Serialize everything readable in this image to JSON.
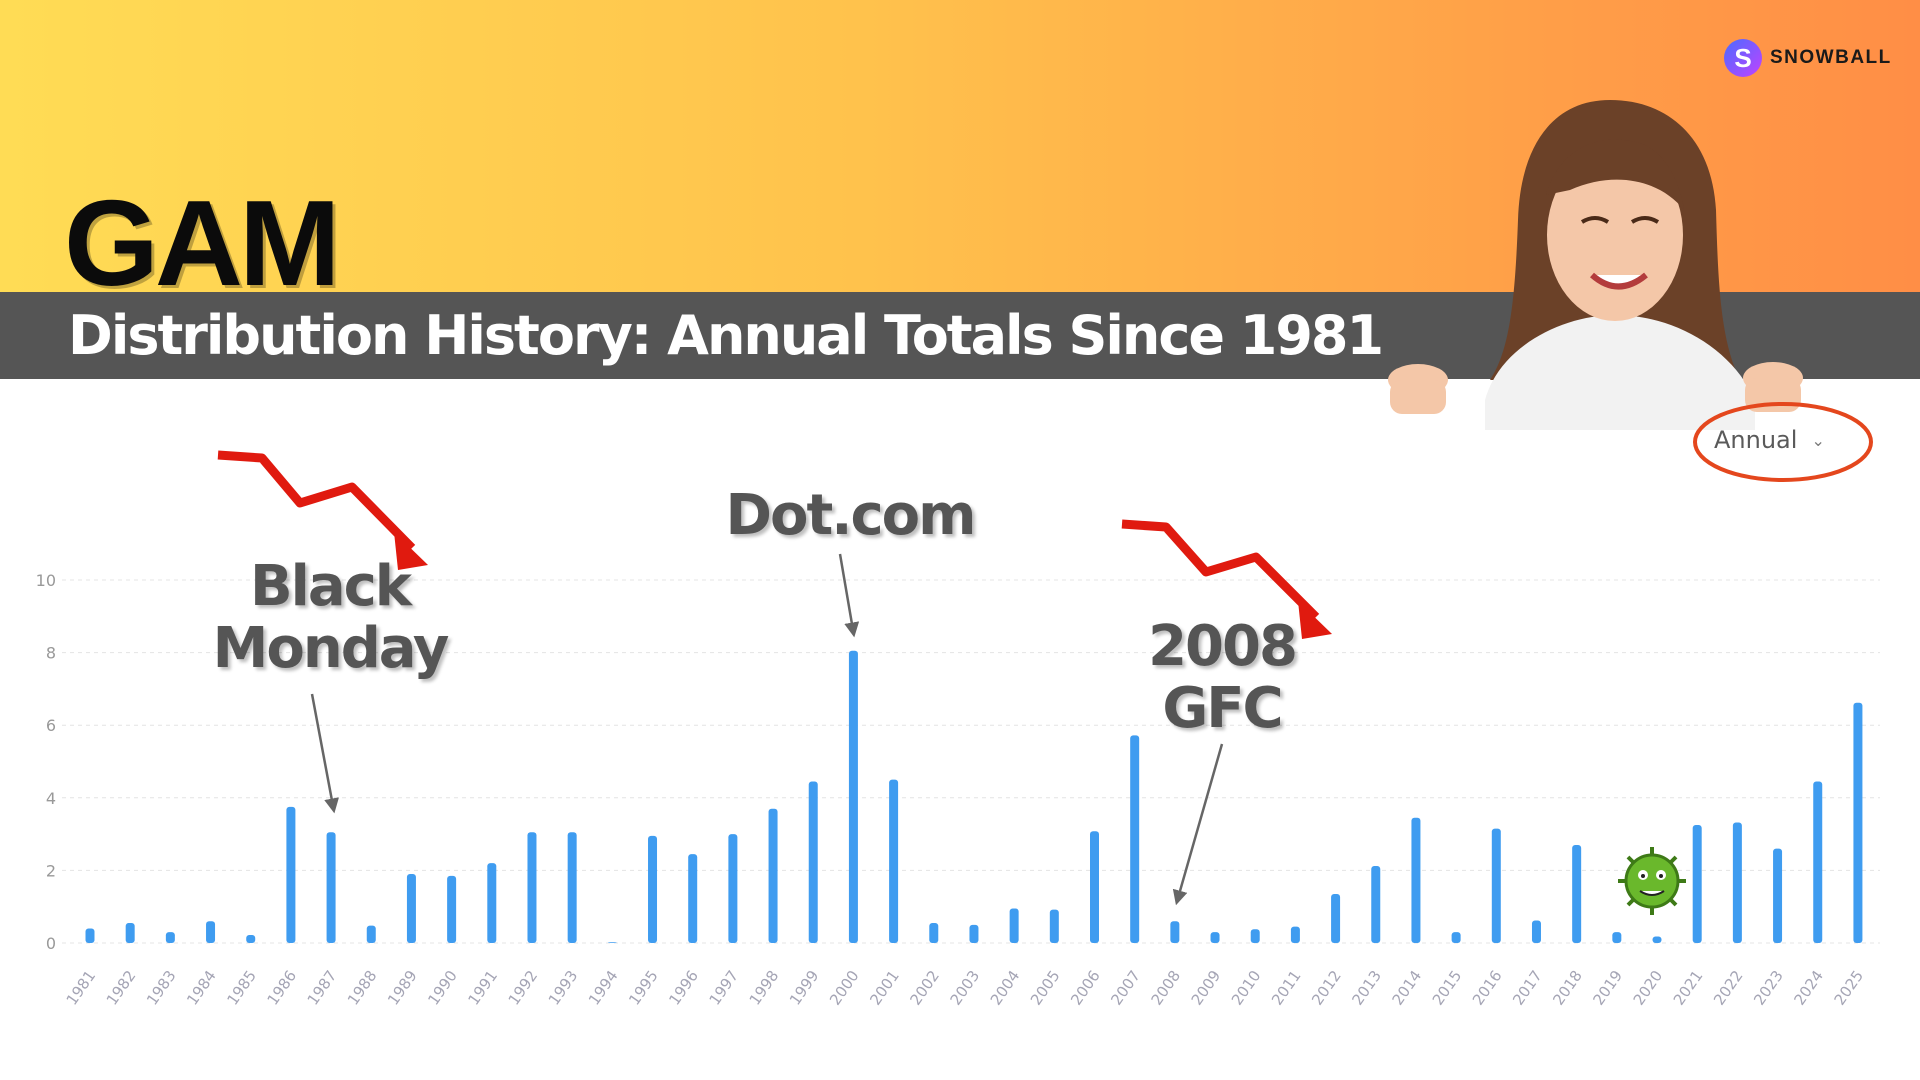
{
  "header": {
    "ticker": "GAM",
    "subtitle": "Distribution History: Annual Totals Since 1981"
  },
  "logo": {
    "letter": "S",
    "text": "SNOWBALL"
  },
  "dropdown": {
    "selected": "Annual"
  },
  "annotations": {
    "black_monday": [
      "Black",
      "Monday"
    ],
    "dotcom": "Dot.com",
    "gfc": [
      "2008",
      "GFC"
    ]
  },
  "icons": [
    "trend-down-arrow-icon",
    "virus-icon",
    "chevron-down-icon"
  ],
  "colors": {
    "bar": "#3f9cf0",
    "header_start": "#ffdc55",
    "header_end": "#ff8e46",
    "band": "#555555",
    "arrow": "#e01a0f"
  },
  "chart_data": {
    "type": "bar",
    "categories": [
      "1981",
      "1982",
      "1983",
      "1984",
      "1985",
      "1986",
      "1987",
      "1988",
      "1989",
      "1990",
      "1991",
      "1992",
      "1993",
      "1994",
      "1995",
      "1996",
      "1997",
      "1998",
      "1999",
      "2000",
      "2001",
      "2002",
      "2003",
      "2004",
      "2005",
      "2006",
      "2007",
      "2008",
      "2009",
      "2010",
      "2011",
      "2012",
      "2013",
      "2014",
      "2015",
      "2016",
      "2017",
      "2018",
      "2019",
      "2020",
      "2021",
      "2022",
      "2023",
      "2024",
      "2025"
    ],
    "values": [
      0.4,
      0.55,
      0.3,
      0.6,
      0.22,
      3.75,
      3.05,
      0.48,
      1.9,
      1.85,
      2.2,
      3.05,
      3.05,
      0.02,
      2.95,
      2.45,
      3.0,
      3.7,
      4.45,
      8.05,
      4.5,
      0.55,
      0.5,
      0.95,
      0.92,
      3.08,
      5.72,
      0.6,
      0.3,
      0.38,
      0.45,
      1.35,
      2.12,
      3.45,
      0.3,
      3.15,
      0.62,
      2.7,
      0.3,
      0.18,
      3.25,
      3.32,
      2.6,
      4.45,
      6.62
    ],
    "yticks": [
      0,
      2,
      4,
      6,
      8,
      10
    ],
    "ylim": [
      0,
      10
    ],
    "grid": true,
    "title": "",
    "xlabel": "",
    "ylabel": ""
  }
}
